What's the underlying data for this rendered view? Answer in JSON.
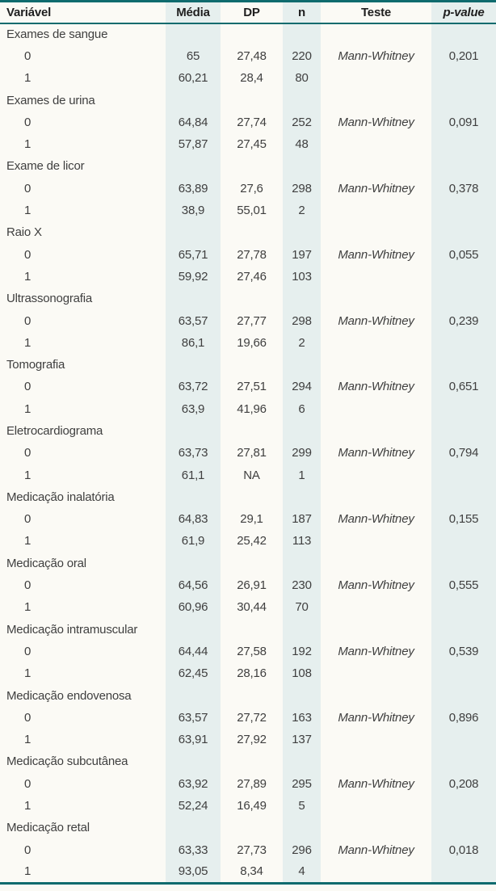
{
  "colors": {
    "border_teal": "#0f6b6e",
    "band": "#e6efee",
    "background": "#fbfaf5",
    "text": "#3f3f3f",
    "header_text": "#1f1f1f"
  },
  "table": {
    "header": {
      "variavel": "Variável",
      "media": "Média",
      "dp": "DP",
      "n": "n",
      "teste": "Teste",
      "p_value": "p-value"
    },
    "groups": [
      {
        "label": "Exames de sangue",
        "test": "Mann-Whitney",
        "p_value": "0,201",
        "rows": [
          {
            "level": "0",
            "media": "65",
            "dp": "27,48",
            "n": "220"
          },
          {
            "level": "1",
            "media": "60,21",
            "dp": "28,4",
            "n": "80"
          }
        ]
      },
      {
        "label": "Exames de urina",
        "test": "Mann-Whitney",
        "p_value": "0,091",
        "rows": [
          {
            "level": "0",
            "media": "64,84",
            "dp": "27,74",
            "n": "252"
          },
          {
            "level": "1",
            "media": "57,87",
            "dp": "27,45",
            "n": "48"
          }
        ]
      },
      {
        "label": "Exame de licor",
        "test": "Mann-Whitney",
        "p_value": "0,378",
        "rows": [
          {
            "level": "0",
            "media": "63,89",
            "dp": "27,6",
            "n": "298"
          },
          {
            "level": "1",
            "media": "38,9",
            "dp": "55,01",
            "n": "2"
          }
        ]
      },
      {
        "label": "Raio X",
        "test": "Mann-Whitney",
        "p_value": "0,055",
        "rows": [
          {
            "level": "0",
            "media": "65,71",
            "dp": "27,78",
            "n": "197"
          },
          {
            "level": "1",
            "media": "59,92",
            "dp": "27,46",
            "n": "103"
          }
        ]
      },
      {
        "label": "Ultrassonografia",
        "test": "Mann-Whitney",
        "p_value": "0,239",
        "rows": [
          {
            "level": "0",
            "media": "63,57",
            "dp": "27,77",
            "n": "298"
          },
          {
            "level": "1",
            "media": "86,1",
            "dp": "19,66",
            "n": "2"
          }
        ]
      },
      {
        "label": "Tomografia",
        "test": "Mann-Whitney",
        "p_value": "0,651",
        "rows": [
          {
            "level": "0",
            "media": "63,72",
            "dp": "27,51",
            "n": "294"
          },
          {
            "level": "1",
            "media": "63,9",
            "dp": "41,96",
            "n": "6"
          }
        ]
      },
      {
        "label": "Eletrocardiograma",
        "test": "Mann-Whitney",
        "p_value": "0,794",
        "rows": [
          {
            "level": "0",
            "media": "63,73",
            "dp": "27,81",
            "n": "299"
          },
          {
            "level": "1",
            "media": "61,1",
            "dp": "NA",
            "n": "1"
          }
        ]
      },
      {
        "label": "Medicação inalatória",
        "test": "Mann-Whitney",
        "p_value": "0,155",
        "rows": [
          {
            "level": "0",
            "media": "64,83",
            "dp": "29,1",
            "n": "187"
          },
          {
            "level": "1",
            "media": "61,9",
            "dp": "25,42",
            "n": "113"
          }
        ]
      },
      {
        "label": "Medicação oral",
        "test": "Mann-Whitney",
        "p_value": "0,555",
        "rows": [
          {
            "level": "0",
            "media": "64,56",
            "dp": "26,91",
            "n": "230"
          },
          {
            "level": "1",
            "media": "60,96",
            "dp": "30,44",
            "n": "70"
          }
        ]
      },
      {
        "label": "Medicação intramuscular",
        "test": "Mann-Whitney",
        "p_value": "0,539",
        "rows": [
          {
            "level": "0",
            "media": "64,44",
            "dp": "27,58",
            "n": "192"
          },
          {
            "level": "1",
            "media": "62,45",
            "dp": "28,16",
            "n": "108"
          }
        ]
      },
      {
        "label": "Medicação endovenosa",
        "test": "Mann-Whitney",
        "p_value": "0,896",
        "rows": [
          {
            "level": "0",
            "media": "63,57",
            "dp": "27,72",
            "n": "163"
          },
          {
            "level": "1",
            "media": "63,91",
            "dp": "27,92",
            "n": "137"
          }
        ]
      },
      {
        "label": "Medicação subcutânea",
        "test": "Mann-Whitney",
        "p_value": "0,208",
        "rows": [
          {
            "level": "0",
            "media": "63,92",
            "dp": "27,89",
            "n": "295"
          },
          {
            "level": "1",
            "media": "52,24",
            "dp": "16,49",
            "n": "5"
          }
        ]
      },
      {
        "label": "Medicação retal",
        "test": "Mann-Whitney",
        "p_value": "0,018",
        "rows": [
          {
            "level": "0",
            "media": "63,33",
            "dp": "27,73",
            "n": "296"
          },
          {
            "level": "1",
            "media": "93,05",
            "dp": "8,34",
            "n": "4"
          }
        ]
      }
    ]
  }
}
